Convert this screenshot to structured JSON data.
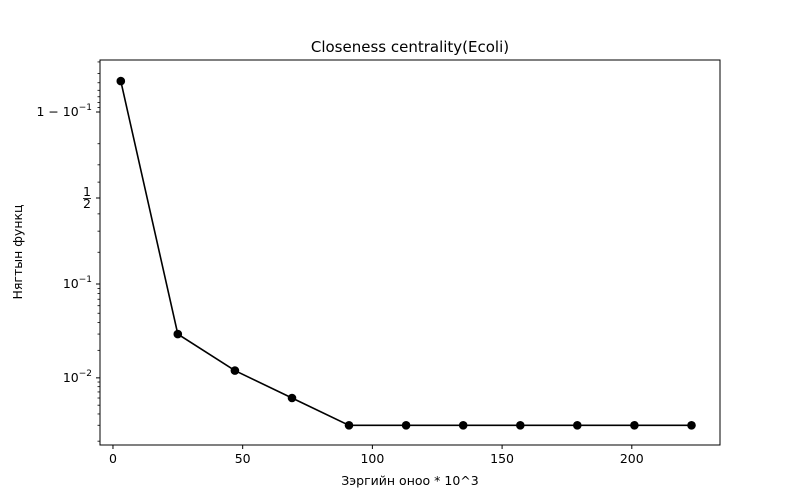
{
  "chart_data": {
    "type": "line",
    "title": "Closeness centrality(Ecoli)",
    "xlabel": "Зэргийн оноо * 10^3",
    "ylabel": "Нягтын функц",
    "yscale": "logit",
    "xlim": [
      -5,
      234
    ],
    "x_ticks": [
      0,
      50,
      100,
      150,
      200
    ],
    "y_ticks": [
      {
        "label": "1 − 10",
        "sup": "−1",
        "value": 0.9
      },
      {
        "frac": [
          "1",
          "2"
        ],
        "value": 0.5
      },
      {
        "label": "10",
        "sup": "−1",
        "value": 0.1
      },
      {
        "label": "10",
        "sup": "−2",
        "value": 0.01
      }
    ],
    "series": [
      {
        "color": "#000000",
        "marker": "circle",
        "x": [
          3,
          25,
          47,
          69,
          91,
          113,
          135,
          157,
          179,
          201,
          223
        ],
        "y": [
          0.952,
          0.03,
          0.012,
          0.006,
          0.003,
          0.003,
          0.003,
          0.003,
          0.003,
          0.003,
          0.003
        ]
      }
    ]
  }
}
